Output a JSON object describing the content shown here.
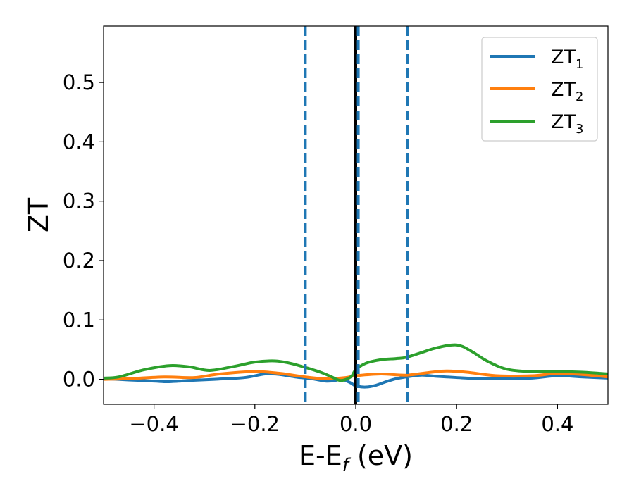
{
  "chart_data": {
    "type": "line",
    "xlabel_main": "E-E",
    "xlabel_sub": "f",
    "xlabel_units": " (eV)",
    "ylabel": "ZT",
    "xlim": [
      -0.5,
      0.5
    ],
    "ylim": [
      -0.042,
      0.595
    ],
    "x_ticks": [
      {
        "value": -0.4,
        "label": "−0.4"
      },
      {
        "value": -0.2,
        "label": "−0.2"
      },
      {
        "value": 0.0,
        "label": "0.0"
      },
      {
        "value": 0.2,
        "label": "0.2"
      },
      {
        "value": 0.4,
        "label": "0.4"
      }
    ],
    "y_ticks": [
      {
        "value": 0.0,
        "label": "0.0"
      },
      {
        "value": 0.1,
        "label": "0.1"
      },
      {
        "value": 0.2,
        "label": "0.2"
      },
      {
        "value": 0.3,
        "label": "0.3"
      },
      {
        "value": 0.4,
        "label": "0.4"
      },
      {
        "value": 0.5,
        "label": "0.5"
      }
    ],
    "grid": false,
    "legend_position": "top-right",
    "vlines": [
      {
        "x": -0.1,
        "style": "dashed",
        "color": "#1f77b4"
      },
      {
        "x": 0.0,
        "style": "solid",
        "color": "#000000"
      },
      {
        "x": 0.005,
        "style": "dashed",
        "color": "#1f77b4"
      },
      {
        "x": 0.103,
        "style": "dashed",
        "color": "#1f77b4"
      }
    ],
    "series": [
      {
        "name": "ZT",
        "sub": "1",
        "color": "#1f77b4",
        "x": [
          -0.5,
          -0.45,
          -0.4,
          -0.37,
          -0.33,
          -0.28,
          -0.22,
          -0.18,
          -0.15,
          -0.12,
          -0.1,
          -0.08,
          -0.06,
          -0.04,
          -0.03,
          -0.01,
          0.0,
          0.02,
          0.04,
          0.06,
          0.08,
          0.1,
          0.13,
          0.16,
          0.2,
          0.25,
          0.3,
          0.35,
          0.4,
          0.45,
          0.5
        ],
        "y": [
          0.001,
          -0.001,
          -0.003,
          -0.004,
          -0.002,
          0.0,
          0.003,
          0.009,
          0.008,
          0.004,
          0.002,
          0.0,
          -0.003,
          -0.002,
          0.001,
          -0.006,
          -0.011,
          -0.013,
          -0.01,
          -0.004,
          0.001,
          0.004,
          0.007,
          0.005,
          0.003,
          0.001,
          0.001,
          0.002,
          0.006,
          0.004,
          0.002
        ]
      },
      {
        "name": "ZT",
        "sub": "2",
        "color": "#ff7f0e",
        "x": [
          -0.5,
          -0.45,
          -0.38,
          -0.32,
          -0.27,
          -0.2,
          -0.15,
          -0.1,
          -0.06,
          -0.02,
          0.0,
          0.05,
          0.1,
          0.15,
          0.18,
          0.22,
          0.28,
          0.35,
          0.4,
          0.45,
          0.5
        ],
        "y": [
          0.0,
          0.001,
          0.004,
          0.003,
          0.009,
          0.013,
          0.01,
          0.004,
          0.001,
          0.003,
          0.006,
          0.009,
          0.007,
          0.012,
          0.014,
          0.012,
          0.006,
          0.006,
          0.01,
          0.008,
          0.004
        ]
      },
      {
        "name": "ZT",
        "sub": "3",
        "color": "#2ca02c",
        "x": [
          -0.5,
          -0.47,
          -0.42,
          -0.37,
          -0.33,
          -0.29,
          -0.24,
          -0.2,
          -0.16,
          -0.13,
          -0.1,
          -0.07,
          -0.05,
          -0.03,
          -0.01,
          0.0,
          0.02,
          0.05,
          0.08,
          0.1,
          0.13,
          0.16,
          0.2,
          0.23,
          0.26,
          0.3,
          0.35,
          0.4,
          0.45,
          0.5
        ],
        "y": [
          0.002,
          0.004,
          0.016,
          0.023,
          0.021,
          0.015,
          0.022,
          0.029,
          0.031,
          0.027,
          0.02,
          0.012,
          0.005,
          -0.002,
          0.004,
          0.016,
          0.027,
          0.033,
          0.035,
          0.037,
          0.045,
          0.053,
          0.058,
          0.047,
          0.031,
          0.017,
          0.013,
          0.013,
          0.012,
          0.009
        ]
      }
    ]
  }
}
